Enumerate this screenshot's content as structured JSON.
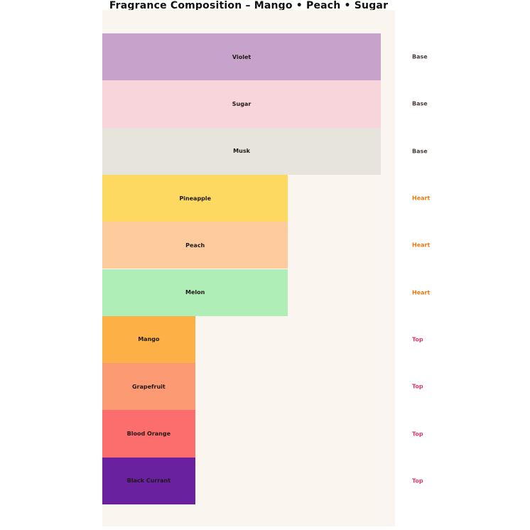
{
  "chart_data": {
    "type": "bar",
    "orientation": "horizontal",
    "title": "Fragrance Composition – Mango • Peach • Sugar",
    "categories": [
      "Violet",
      "Sugar",
      "Musk",
      "Pineapple",
      "Peach",
      "Melon",
      "Mango",
      "Grapefruit",
      "Blood Orange",
      "Black Currant"
    ],
    "values": [
      3,
      3,
      3,
      2,
      2,
      2,
      1,
      1,
      1,
      1
    ],
    "groups": [
      "Base",
      "Base",
      "Base",
      "Heart",
      "Heart",
      "Heart",
      "Top",
      "Top",
      "Top",
      "Top"
    ],
    "bar_colors": [
      "#C7A3CB",
      "#F7D5DA",
      "#E7E4DC",
      "#FDD961",
      "#FDCB9C",
      "#AFEEB7",
      "#FCB045",
      "#FC9B73",
      "#FC6D6D",
      "#6A21A0"
    ],
    "group_label_colors": {
      "Base": "#4A3B36",
      "Heart": "#EE770F",
      "Top": "#D9386F"
    },
    "bar_label_color": "#1F1A17",
    "plot_background": "#FAF5EF",
    "page_background": "#FFFFFF",
    "xlabel": "",
    "ylabel": "",
    "xlim": [
      0,
      3.15
    ],
    "axes_visible": false,
    "grid": false,
    "legend": "none",
    "bar_labels_inside": true,
    "group_labels_position": "right"
  }
}
